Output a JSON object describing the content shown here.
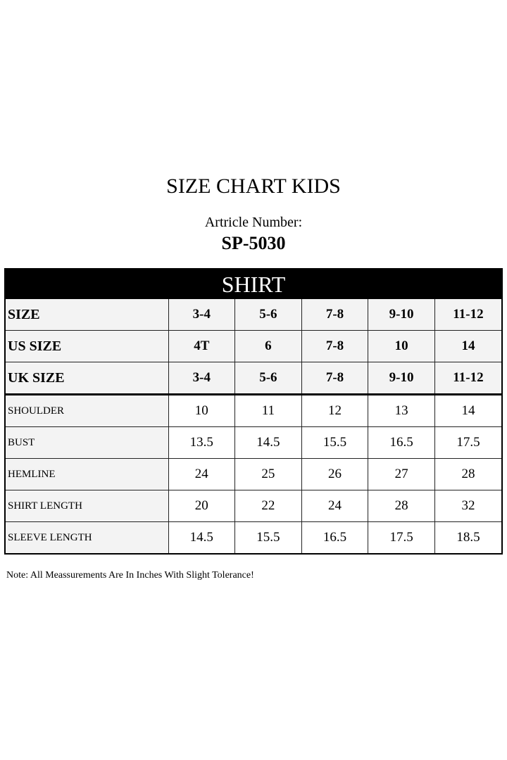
{
  "title": "SIZE CHART KIDS",
  "article_label": "Artricle Number:",
  "article_number": "SP-5030",
  "table": {
    "banner": "SHIRT",
    "header_rows": [
      {
        "label": "SIZE",
        "values": [
          "3-4",
          "5-6",
          "7-8",
          "9-10",
          "11-12"
        ]
      },
      {
        "label": "US SIZE",
        "values": [
          "4T",
          "6",
          "7-8",
          "10",
          "14"
        ]
      },
      {
        "label": "UK SIZE",
        "values": [
          "3-4",
          "5-6",
          "7-8",
          "9-10",
          "11-12"
        ]
      }
    ],
    "measure_rows": [
      {
        "label": "SHOULDER",
        "values": [
          "10",
          "11",
          "12",
          "13",
          "14"
        ]
      },
      {
        "label": "BUST",
        "values": [
          "13.5",
          "14.5",
          "15.5",
          "16.5",
          "17.5"
        ]
      },
      {
        "label": "HEMLINE",
        "values": [
          "24",
          "25",
          "26",
          "27",
          "28"
        ]
      },
      {
        "label": "SHIRT LENGTH",
        "values": [
          "20",
          "22",
          "24",
          "28",
          "32"
        ]
      },
      {
        "label": "SLEEVE LENGTH",
        "values": [
          "14.5",
          "15.5",
          "16.5",
          "17.5",
          "18.5"
        ]
      }
    ]
  },
  "note": "Note: All Meassurements Are In Inches With Slight Tolerance!"
}
